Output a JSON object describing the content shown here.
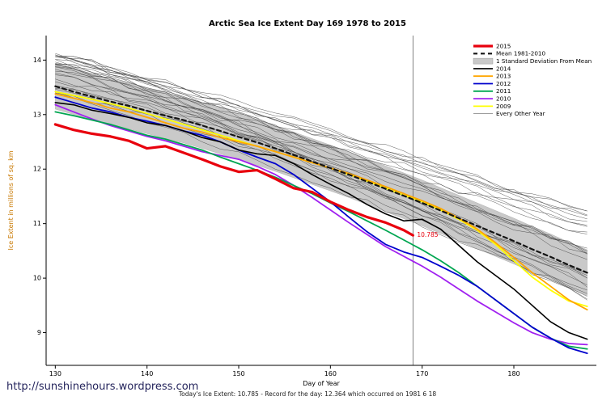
{
  "page": {
    "url_watermark": "http://sunshinehours.wordpress.com",
    "footnote": "Today's Ice Extent: 10.785  - Record for the day: 12.364 which occurred on 1981 6 18"
  },
  "chart_data": {
    "type": "line",
    "title": "Arctic Sea Ice Extent Day 169 1978 to 2015",
    "xlabel": "Day of Year",
    "ylabel": "Ice Extent in millions of sq. km",
    "ylabel_color": "#c87800",
    "xlim": [
      129,
      189
    ],
    "ylim": [
      8.4,
      14.45
    ],
    "xticks": [
      130,
      140,
      150,
      160,
      170,
      180
    ],
    "yticks": [
      9,
      10,
      11,
      12,
      13,
      14
    ],
    "vline_x": 169,
    "annotation": {
      "text": "10.785",
      "x": 169,
      "y": 10.79,
      "color": "#e8000d"
    },
    "x": [
      130,
      132,
      134,
      136,
      138,
      140,
      142,
      144,
      146,
      148,
      150,
      152,
      154,
      156,
      158,
      160,
      162,
      164,
      166,
      168,
      170,
      172,
      174,
      176,
      178,
      180,
      182,
      184,
      186,
      188
    ],
    "band": {
      "name": "1 Standard Deviation From Mean",
      "mean_of": "Mean 1981-2010",
      "sd": 0.42,
      "color": "#c9c9c9"
    },
    "background": {
      "name": "Every Other Year",
      "count": 27,
      "color": "#3c3c3c",
      "width": 0.5,
      "start_range": [
        13.35,
        14.3
      ],
      "end_range": [
        9.6,
        11.25
      ],
      "noise": 0.06,
      "seed": 7
    },
    "series": [
      {
        "name": "2009",
        "color": "#ffff00",
        "width": 1.8,
        "values": [
          13.42,
          13.35,
          13.28,
          13.2,
          13.12,
          13.02,
          12.92,
          12.82,
          12.72,
          12.62,
          12.52,
          12.42,
          12.32,
          12.22,
          12.12,
          12.02,
          11.9,
          11.78,
          11.65,
          11.52,
          11.4,
          11.25,
          11.08,
          10.88,
          10.62,
          10.32,
          10.02,
          9.78,
          9.58,
          9.48
        ]
      },
      {
        "name": "2010",
        "color": "#a020f0",
        "width": 1.8,
        "values": [
          13.18,
          13.05,
          12.92,
          12.8,
          12.7,
          12.6,
          12.52,
          12.42,
          12.32,
          12.25,
          12.18,
          12.05,
          11.9,
          11.7,
          11.48,
          11.25,
          11.02,
          10.8,
          10.58,
          10.4,
          10.22,
          10.02,
          9.8,
          9.58,
          9.38,
          9.18,
          9.0,
          8.88,
          8.8,
          8.78
        ]
      },
      {
        "name": "2011",
        "color": "#00a651",
        "width": 1.8,
        "values": [
          13.05,
          12.98,
          12.9,
          12.82,
          12.72,
          12.62,
          12.55,
          12.45,
          12.35,
          12.22,
          12.1,
          11.98,
          11.85,
          11.7,
          11.55,
          11.38,
          11.22,
          11.05,
          10.88,
          10.7,
          10.52,
          10.32,
          10.1,
          9.85,
          9.6,
          9.35,
          9.1,
          8.9,
          8.75,
          8.7
        ]
      },
      {
        "name": "2012",
        "color": "#0000cd",
        "width": 1.8,
        "values": [
          13.32,
          13.22,
          13.12,
          13.05,
          12.95,
          12.88,
          12.8,
          12.7,
          12.62,
          12.5,
          12.35,
          12.22,
          12.1,
          11.9,
          11.65,
          11.4,
          11.12,
          10.85,
          10.62,
          10.48,
          10.38,
          10.22,
          10.05,
          9.85,
          9.6,
          9.35,
          9.1,
          8.9,
          8.72,
          8.62
        ]
      },
      {
        "name": "2013",
        "color": "#ffa500",
        "width": 1.8,
        "values": [
          13.38,
          13.3,
          13.22,
          13.12,
          13.05,
          12.95,
          12.85,
          12.75,
          12.68,
          12.58,
          12.5,
          12.42,
          12.32,
          12.22,
          12.12,
          12.02,
          11.92,
          11.8,
          11.68,
          11.55,
          11.42,
          11.28,
          11.1,
          10.9,
          10.65,
          10.38,
          10.1,
          9.85,
          9.6,
          9.42
        ]
      },
      {
        "name": "2014",
        "color": "#000000",
        "width": 1.6,
        "values": [
          13.22,
          13.18,
          13.08,
          13.02,
          12.95,
          12.85,
          12.8,
          12.7,
          12.58,
          12.5,
          12.35,
          12.28,
          12.25,
          12.1,
          11.9,
          11.72,
          11.55,
          11.35,
          11.18,
          11.05,
          11.08,
          10.9,
          10.6,
          10.3,
          10.05,
          9.8,
          9.5,
          9.2,
          9.0,
          8.88
        ]
      },
      {
        "name": "Mean 1981-2010",
        "color": "#141414",
        "width": 2.2,
        "dash": [
          5,
          4
        ],
        "values": [
          13.52,
          13.42,
          13.33,
          13.24,
          13.16,
          13.07,
          12.98,
          12.9,
          12.8,
          12.7,
          12.59,
          12.49,
          12.38,
          12.26,
          12.14,
          12.02,
          11.9,
          11.77,
          11.64,
          11.51,
          11.38,
          11.24,
          11.1,
          10.96,
          10.82,
          10.68,
          10.53,
          10.39,
          10.24,
          10.1
        ]
      },
      {
        "name": "2015",
        "color": "#e8000d",
        "width": 3.2,
        "x": [
          130,
          132,
          134,
          136,
          138,
          140,
          142,
          144,
          146,
          148,
          150,
          152,
          154,
          156,
          158,
          160,
          162,
          164,
          166,
          168,
          169
        ],
        "values": [
          12.82,
          12.72,
          12.65,
          12.6,
          12.52,
          12.38,
          12.42,
          12.3,
          12.18,
          12.05,
          11.95,
          11.98,
          11.82,
          11.65,
          11.58,
          11.4,
          11.25,
          11.12,
          11.02,
          10.88,
          10.785
        ]
      }
    ],
    "legend": [
      {
        "label": "2015",
        "type": "line",
        "color": "#e8000d",
        "width": 3.2
      },
      {
        "label": "Mean 1981-2010",
        "type": "line",
        "color": "#141414",
        "width": 2.2,
        "dash": [
          5,
          4
        ]
      },
      {
        "label": "1 Standard Deviation From Mean",
        "type": "band",
        "color": "#c9c9c9"
      },
      {
        "label": "2014",
        "type": "line",
        "color": "#000000",
        "width": 1.6
      },
      {
        "label": "2013",
        "type": "line",
        "color": "#ffa500",
        "width": 1.8
      },
      {
        "label": "2012",
        "type": "line",
        "color": "#0000cd",
        "width": 1.8
      },
      {
        "label": "2011",
        "type": "line",
        "color": "#00a651",
        "width": 1.8
      },
      {
        "label": "2010",
        "type": "line",
        "color": "#a020f0",
        "width": 1.8
      },
      {
        "label": "2009",
        "type": "line",
        "color": "#ffff00",
        "width": 1.8
      },
      {
        "label": "Every Other Year",
        "type": "line",
        "color": "#3c3c3c",
        "width": 0.5
      }
    ],
    "legend_position": "top-right",
    "grid": false
  }
}
